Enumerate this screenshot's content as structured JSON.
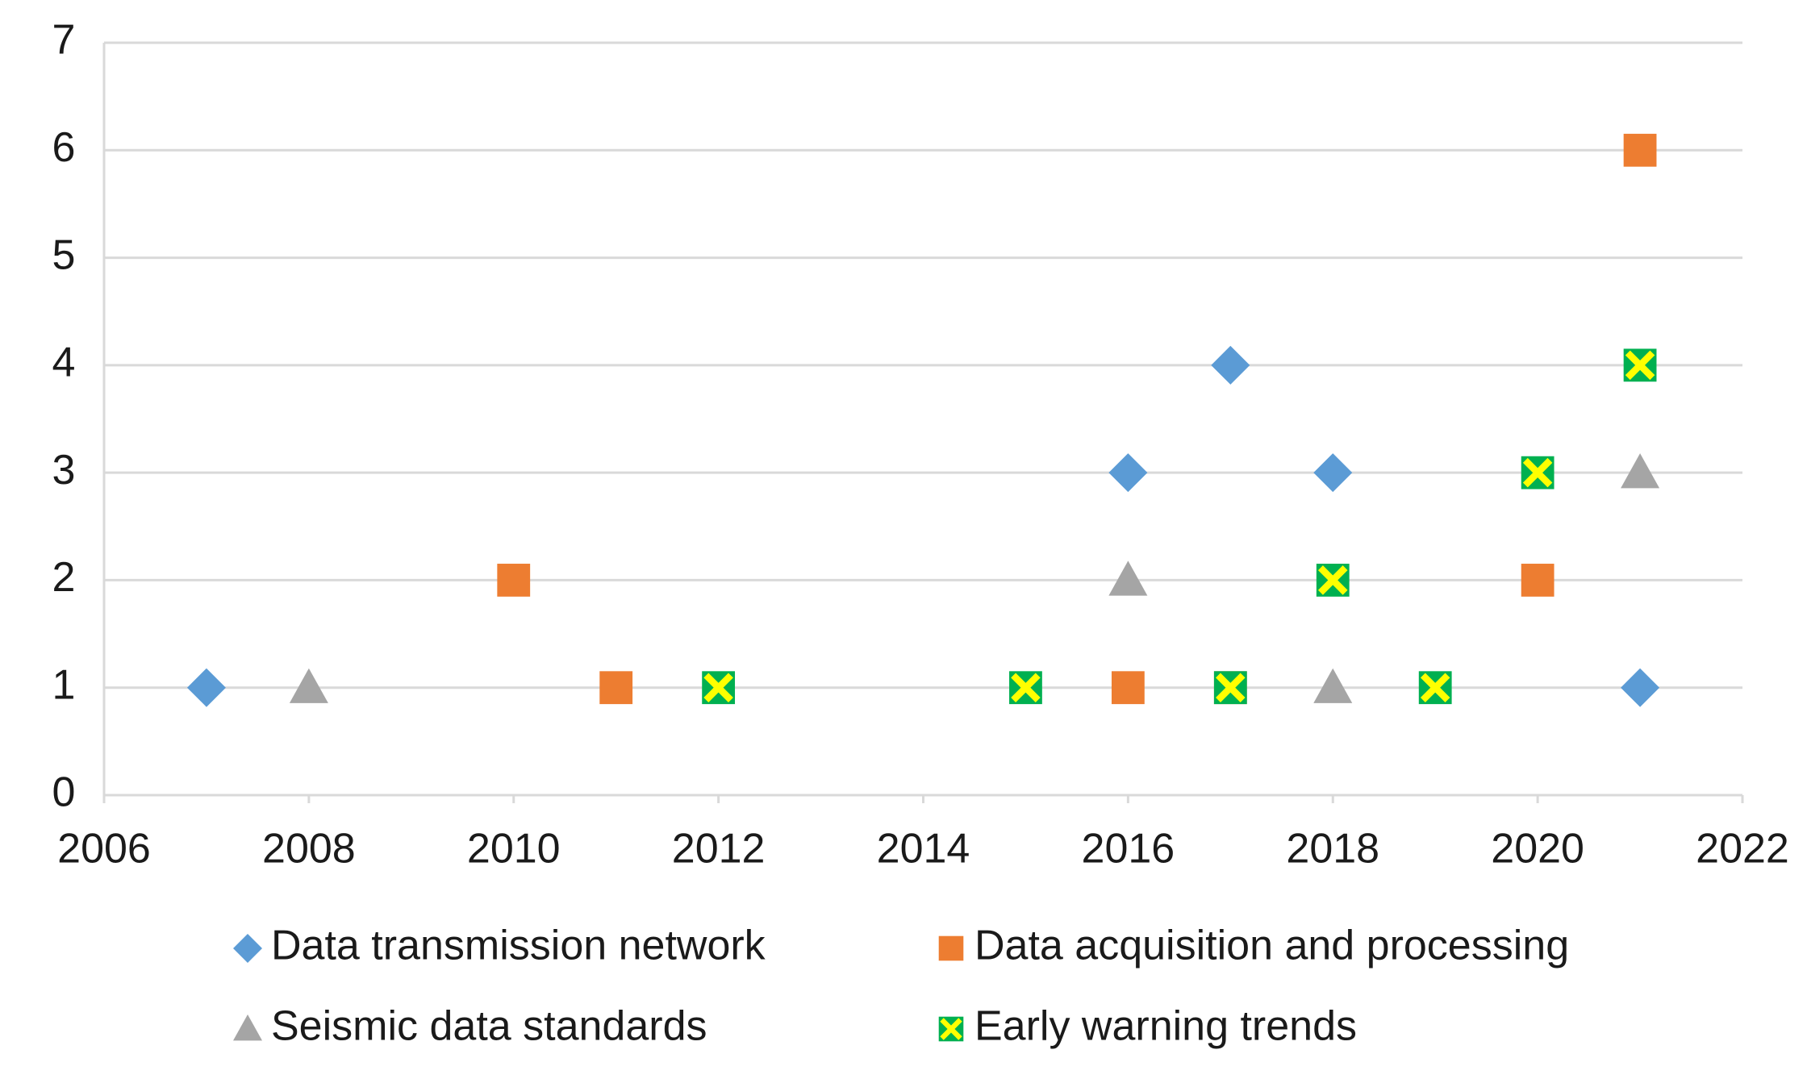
{
  "chart_data": {
    "type": "scatter",
    "xlim": [
      2006,
      2022
    ],
    "xticks": [
      2006,
      2008,
      2010,
      2012,
      2014,
      2016,
      2018,
      2020,
      2022
    ],
    "ylim": [
      0,
      7
    ],
    "yticks": [
      0,
      1,
      2,
      3,
      4,
      5,
      6,
      7
    ],
    "grid": true,
    "series": [
      {
        "name": "Data transmission network",
        "color": "#5b9bd5",
        "marker": "diamond",
        "x": [
          2007,
          2016,
          2017,
          2018,
          2021
        ],
        "values": [
          1,
          3,
          4,
          3,
          1
        ]
      },
      {
        "name": "Data acquisition and processing",
        "color": "#ed7d31",
        "marker": "square",
        "x": [
          2010,
          2011,
          2016,
          2017,
          2020,
          2021
        ],
        "values": [
          2,
          1,
          1,
          1,
          2,
          6
        ]
      },
      {
        "name": "Seismic data standards",
        "color": "#a5a5a5",
        "marker": "triangle",
        "x": [
          2008,
          2016,
          2018,
          2021
        ],
        "values": [
          1,
          2,
          1,
          3
        ]
      },
      {
        "name": "Early warning trends",
        "color": "#00b050",
        "cross_color": "#ffff00",
        "marker": "x-square",
        "x": [
          2012,
          2015,
          2017,
          2018,
          2019,
          2020,
          2021
        ],
        "values": [
          1,
          1,
          1,
          2,
          1,
          3,
          4
        ]
      }
    ]
  }
}
